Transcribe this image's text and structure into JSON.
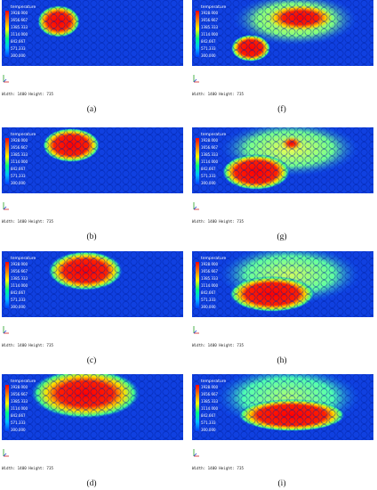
{
  "colorbar": {
    "title": "temperature",
    "ticks": [
      "1928.000",
      "1656.667",
      "1385.333",
      "1114.000",
      "842.667",
      "571.333",
      "300.000"
    ],
    "colors": [
      "#ff0000",
      "#ff8000",
      "#ffff00",
      "#00ff80",
      "#00c0ff",
      "#0040ff"
    ]
  },
  "size_label": "Width: 1400 Height: 735",
  "panels": [
    {
      "caption": "(a)"
    },
    {
      "caption": "(b)"
    },
    {
      "caption": "(c)"
    },
    {
      "caption": "(d)"
    },
    {
      "caption": "(f)"
    },
    {
      "caption": "(g)"
    },
    {
      "caption": "(h)"
    },
    {
      "caption": "(i)"
    }
  ]
}
